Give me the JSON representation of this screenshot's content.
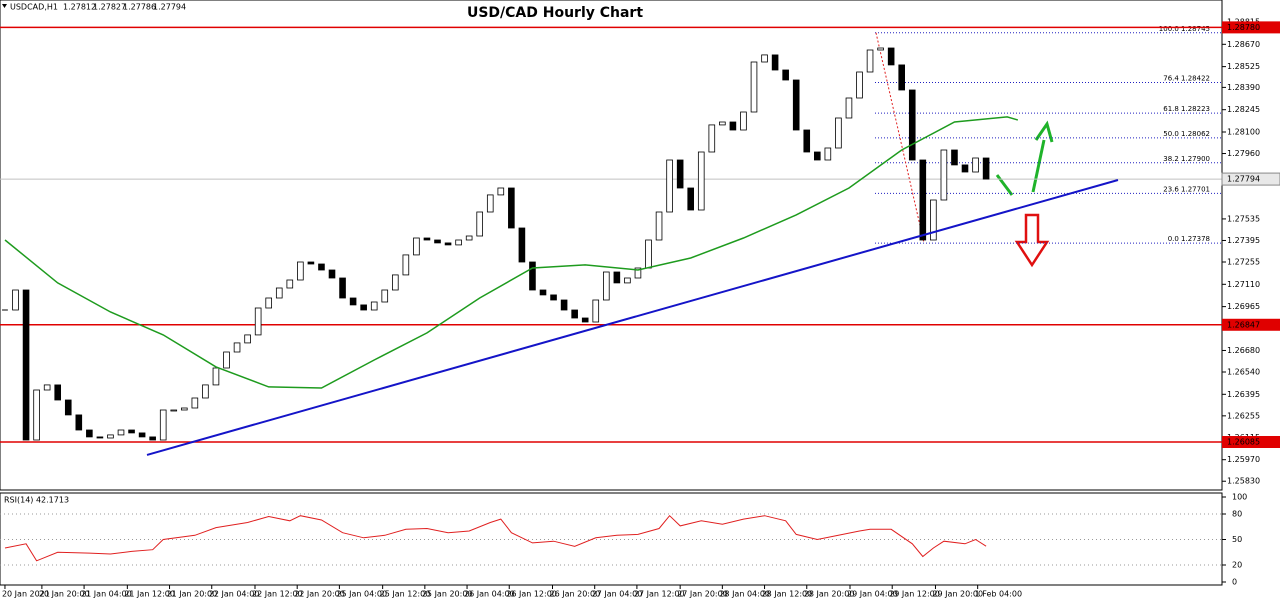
{
  "chart_data": [
    {
      "type": "candlestick",
      "title": "USD/CAD Hourly Chart",
      "symbol": "USDCAD,H1",
      "last_bar": {
        "open": 1.27812,
        "high": 1.27827,
        "low": 1.27786,
        "close": 1.27794
      },
      "xlim": [
        -0.47,
        115.36
      ],
      "xticks": [
        {
          "value": 0,
          "label": "20 Jan 2021"
        },
        {
          "value": 3.5,
          "label": "20 Jan 20:00"
        },
        {
          "value": 7.5,
          "label": "21 Jan 04:00"
        },
        {
          "value": 11.6,
          "label": "21 Jan 12:00"
        },
        {
          "value": 15.6,
          "label": "21 Jan 20:00"
        },
        {
          "value": 19.6,
          "label": "22 Jan 04:00"
        },
        {
          "value": 23.7,
          "label": "22 Jan 12:00"
        },
        {
          "value": 27.7,
          "label": "22 Jan 20:00"
        },
        {
          "value": 31.7,
          "label": "25 Jan 04:00"
        },
        {
          "value": 35.8,
          "label": "25 Jan 12:00"
        },
        {
          "value": 39.8,
          "label": "25 Jan 20:00"
        },
        {
          "value": 43.8,
          "label": "26 Jan 04:00"
        },
        {
          "value": 47.8,
          "label": "26 Jan 12:00"
        },
        {
          "value": 51.9,
          "label": "26 Jan 20:00"
        },
        {
          "value": 55.9,
          "label": "27 Jan 04:00"
        },
        {
          "value": 59.9,
          "label": "27 Jan 12:00"
        },
        {
          "value": 64.0,
          "label": "27 Jan 20:00"
        },
        {
          "value": 68.0,
          "label": "28 Jan 04:00"
        },
        {
          "value": 72.0,
          "label": "28 Jan 12:00"
        },
        {
          "value": 76.0,
          "label": "28 Jan 20:00"
        },
        {
          "value": 80.1,
          "label": "29 Jan 04:00"
        },
        {
          "value": 84.1,
          "label": "29 Jan 12:00"
        },
        {
          "value": 88.2,
          "label": "29 Jan 20:00"
        },
        {
          "value": 92.2,
          "label": "1 Feb 04:00"
        }
      ],
      "ylim": [
        1.25773,
        1.28958
      ],
      "yticks": [
        {
          "value": 1.28815,
          "label": "1.28815"
        },
        {
          "value": 1.2867,
          "label": "1.28670"
        },
        {
          "value": 1.28525,
          "label": "1.28525"
        },
        {
          "value": 1.2839,
          "label": "1.28390"
        },
        {
          "value": 1.28245,
          "label": "1.28245"
        },
        {
          "value": 1.281,
          "label": "1.28100"
        },
        {
          "value": 1.2796,
          "label": "1.27960"
        },
        {
          "value": 1.27535,
          "label": "1.27535"
        },
        {
          "value": 1.27395,
          "label": "1.27395"
        },
        {
          "value": 1.27255,
          "label": "1.27255"
        },
        {
          "value": 1.2711,
          "label": "1.27110"
        },
        {
          "value": 1.26965,
          "label": "1.26965"
        },
        {
          "value": 1.26825,
          "label": "1.26825"
        },
        {
          "value": 1.2668,
          "label": "1.26680"
        },
        {
          "value": 1.2654,
          "label": "1.26540"
        },
        {
          "value": 1.26395,
          "label": "1.26395"
        },
        {
          "value": 1.26255,
          "label": "1.26255"
        },
        {
          "value": 1.26115,
          "label": "1.26115"
        },
        {
          "value": 1.2597,
          "label": "1.25970"
        },
        {
          "value": 1.2583,
          "label": "1.25830"
        }
      ],
      "closes": {
        "up_color": "#ffffff",
        "down_color": "#000000",
        "values": [
          1.26943,
          1.27073,
          1.26098,
          1.26423,
          1.26456,
          1.26358,
          1.26261,
          1.26163,
          1.26118,
          1.26111,
          1.26131,
          1.26163,
          1.26144,
          1.26118,
          1.26098,
          1.26293,
          1.26293,
          1.26306,
          1.26371,
          1.26456,
          1.26566,
          1.2667,
          1.26729,
          1.26781,
          1.26956,
          1.27021,
          1.27086,
          1.27138,
          1.27255,
          1.27242,
          1.27203,
          1.27151,
          1.27021,
          1.26976,
          1.26943,
          1.26995,
          1.27073,
          1.27171,
          1.27301,
          1.27411,
          1.27398,
          1.27379,
          1.27366,
          1.27398,
          1.27424,
          1.2758,
          1.27691,
          1.27736,
          1.27476,
          1.27255,
          1.27073,
          1.27041,
          1.27008,
          1.26943,
          1.26891,
          1.26865,
          1.27008,
          1.2719,
          1.27119,
          1.27151,
          1.27216,
          1.27398,
          1.2758,
          1.27918,
          1.27736,
          1.27593,
          1.2797,
          1.28146,
          1.28165,
          1.28113,
          1.2823,
          1.28555,
          1.28601,
          1.28503,
          1.28438,
          1.28113,
          1.2797,
          1.27918,
          1.27996,
          1.28191,
          1.28321,
          1.2849,
          1.28633,
          1.28646,
          1.28536,
          1.28373,
          1.27918,
          1.27398,
          1.27658,
          1.27983,
          1.27886,
          1.2784,
          1.27931,
          1.27794
        ]
      },
      "moving_average": {
        "color": "#1e9b1e",
        "x": [
          0,
          5,
          10,
          15,
          20,
          25,
          30,
          35,
          40,
          45,
          50,
          55,
          60,
          65,
          70,
          75,
          80,
          85,
          90,
          95,
          96
        ],
        "values": [
          1.27398,
          1.27119,
          1.2693,
          1.26781,
          1.26573,
          1.26443,
          1.26436,
          1.26618,
          1.26794,
          1.27021,
          1.27216,
          1.27236,
          1.27203,
          1.27281,
          1.27411,
          1.27561,
          1.27736,
          1.27983,
          1.28165,
          1.28198,
          1.28178
        ]
      },
      "trendline": {
        "color": "#1414c8",
        "x": [
          13.46,
          105.5
        ],
        "values": [
          1.26001,
          1.27788
        ]
      },
      "levels": [
        {
          "value": 1.2878,
          "label": "1.28780"
        },
        {
          "value": 1.26847,
          "label": "1.26847"
        },
        {
          "value": 1.26085,
          "label": "1.26085"
        }
      ],
      "level_color": "#e00000",
      "current_price": {
        "value": 1.27794,
        "label": "1.27794"
      },
      "fibonacci": [
        {
          "value": 1.28745,
          "label": "100.0 1.28745"
        },
        {
          "value": 1.28422,
          "label": "76.4 1.28422"
        },
        {
          "value": 1.28223,
          "label": "61.8 1.28223"
        },
        {
          "value": 1.28062,
          "label": "50.0 1.28062"
        },
        {
          "value": 1.279,
          "label": "38.2 1.27900"
        },
        {
          "value": 1.27701,
          "label": "23.6 1.27701"
        },
        {
          "value": 1.27378,
          "label": "0.0 1.27378"
        }
      ],
      "fib_color": "#2020c0"
    },
    {
      "type": "line",
      "title": "RSI(14) 42.1713",
      "color": "#e02020",
      "grid": true,
      "ylim": [
        0,
        100
      ],
      "yticks": [
        0,
        20,
        50,
        80,
        100
      ],
      "x": [
        0,
        2,
        3,
        5,
        8,
        10,
        12,
        14,
        15,
        18,
        20,
        23,
        25,
        27,
        28,
        30,
        32,
        34,
        36,
        38,
        40,
        42,
        44,
        46,
        47,
        48,
        50,
        52,
        54,
        56,
        58,
        60,
        62,
        63,
        64,
        66,
        68,
        70,
        72,
        74,
        75,
        77,
        79,
        81,
        82,
        84,
        86,
        87,
        88,
        89,
        91,
        92,
        93
      ],
      "values": [
        40,
        45,
        25,
        35,
        34,
        33,
        36,
        38,
        50,
        55,
        64,
        70,
        77,
        72,
        78,
        73,
        58,
        52,
        55,
        62,
        63,
        58,
        60,
        70,
        74,
        58,
        46,
        48,
        42,
        52,
        55,
        56,
        63,
        78,
        66,
        72,
        68,
        74,
        78,
        72,
        56,
        50,
        55,
        60,
        62,
        62,
        45,
        30,
        40,
        48,
        45,
        50,
        42.1713
      ]
    }
  ]
}
